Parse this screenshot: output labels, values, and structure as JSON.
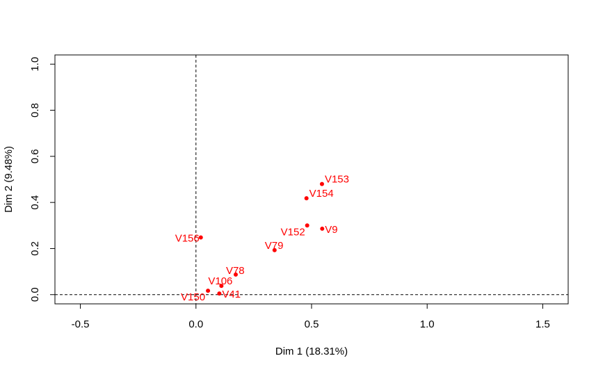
{
  "chart_data": {
    "type": "scatter",
    "title": "",
    "xlabel": "Dim 1 (18.31%)",
    "ylabel": "Dim 2 (9.48%)",
    "xlim": [
      -0.61,
      1.61
    ],
    "ylim": [
      -0.04,
      1.04
    ],
    "xticks": [
      -0.5,
      0.0,
      0.5,
      1.0,
      1.5
    ],
    "xtick_labels": [
      "-0.5",
      "0.0",
      "0.5",
      "1.0",
      "1.5"
    ],
    "yticks": [
      0.0,
      0.2,
      0.4,
      0.6,
      0.8,
      1.0
    ],
    "ytick_labels": [
      "0.0",
      "0.2",
      "0.4",
      "0.6",
      "0.8",
      "1.0"
    ],
    "grid": false,
    "reference_lines": {
      "x": 0,
      "y": 0,
      "style": "dashed"
    },
    "point_color": "#ff0000",
    "points": [
      {
        "label": "V153",
        "x": 0.545,
        "y": 0.48
      },
      {
        "label": "V154",
        "x": 0.478,
        "y": 0.418
      },
      {
        "label": "V152",
        "x": 0.481,
        "y": 0.3
      },
      {
        "label": "V9",
        "x": 0.546,
        "y": 0.286
      },
      {
        "label": "V79",
        "x": 0.34,
        "y": 0.193
      },
      {
        "label": "V156",
        "x": 0.021,
        "y": 0.248
      },
      {
        "label": "V78",
        "x": 0.172,
        "y": 0.087
      },
      {
        "label": "V106",
        "x": 0.11,
        "y": 0.038
      },
      {
        "label": "V41",
        "x": 0.101,
        "y": 0.005
      },
      {
        "label": "V150",
        "x": 0.052,
        "y": 0.017
      }
    ]
  }
}
